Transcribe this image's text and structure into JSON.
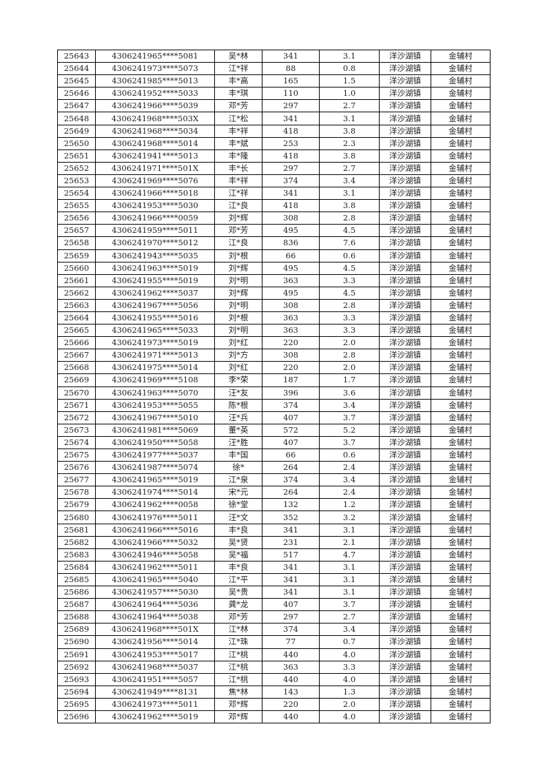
{
  "rows": [
    [
      "25643",
      "4306241965****5081",
      "吴*林",
      "341",
      "3.1",
      "洋沙湖镇",
      "金辅村"
    ],
    [
      "25644",
      "4306241973****5073",
      "江*祥",
      "88",
      "0.8",
      "洋沙湖镇",
      "金辅村"
    ],
    [
      "25645",
      "4306241985****5013",
      "丰*高",
      "165",
      "1.5",
      "洋沙湖镇",
      "金辅村"
    ],
    [
      "25646",
      "4306241952****5033",
      "丰*琪",
      "110",
      "1.0",
      "洋沙湖镇",
      "金辅村"
    ],
    [
      "25647",
      "4306241966****5039",
      "邓*芳",
      "297",
      "2.7",
      "洋沙湖镇",
      "金辅村"
    ],
    [
      "25648",
      "4306241968****503X",
      "江*松",
      "341",
      "3.1",
      "洋沙湖镇",
      "金辅村"
    ],
    [
      "25649",
      "4306241968****5034",
      "丰*祥",
      "418",
      "3.8",
      "洋沙湖镇",
      "金辅村"
    ],
    [
      "25650",
      "4306241968****5014",
      "丰*斌",
      "253",
      "2.3",
      "洋沙湖镇",
      "金辅村"
    ],
    [
      "25651",
      "4306241941****5013",
      "丰*隆",
      "418",
      "3.8",
      "洋沙湖镇",
      "金辅村"
    ],
    [
      "25652",
      "4306241971****501X",
      "丰*长",
      "297",
      "2.7",
      "洋沙湖镇",
      "金辅村"
    ],
    [
      "25653",
      "4306241969****5076",
      "丰*祥",
      "374",
      "3.4",
      "洋沙湖镇",
      "金辅村"
    ],
    [
      "25654",
      "4306241966****5018",
      "江*祥",
      "341",
      "3.1",
      "洋沙湖镇",
      "金辅村"
    ],
    [
      "25655",
      "4306241953****5030",
      "江*良",
      "418",
      "3.8",
      "洋沙湖镇",
      "金辅村"
    ],
    [
      "25656",
      "4306241966****0059",
      "刘*辉",
      "308",
      "2.8",
      "洋沙湖镇",
      "金辅村"
    ],
    [
      "25657",
      "4306241959****5011",
      "邓*芳",
      "495",
      "4.5",
      "洋沙湖镇",
      "金辅村"
    ],
    [
      "25658",
      "4306241970****5012",
      "江*良",
      "836",
      "7.6",
      "洋沙湖镇",
      "金辅村"
    ],
    [
      "25659",
      "4306241943****5035",
      "刘*根",
      "66",
      "0.6",
      "洋沙湖镇",
      "金辅村"
    ],
    [
      "25660",
      "4306241963****5019",
      "刘*辉",
      "495",
      "4.5",
      "洋沙湖镇",
      "金辅村"
    ],
    [
      "25661",
      "4306241955****5019",
      "刘*明",
      "363",
      "3.3",
      "洋沙湖镇",
      "金辅村"
    ],
    [
      "25662",
      "4306241962****5037",
      "刘*辉",
      "495",
      "4.5",
      "洋沙湖镇",
      "金辅村"
    ],
    [
      "25663",
      "4306241967****5056",
      "刘*明",
      "308",
      "2.8",
      "洋沙湖镇",
      "金辅村"
    ],
    [
      "25664",
      "4306241955****5016",
      "刘*根",
      "363",
      "3.3",
      "洋沙湖镇",
      "金辅村"
    ],
    [
      "25665",
      "4306241965****5033",
      "刘*明",
      "363",
      "3.3",
      "洋沙湖镇",
      "金辅村"
    ],
    [
      "25666",
      "4306241973****5019",
      "刘*红",
      "220",
      "2.0",
      "洋沙湖镇",
      "金辅村"
    ],
    [
      "25667",
      "4306241971****5013",
      "刘*方",
      "308",
      "2.8",
      "洋沙湖镇",
      "金辅村"
    ],
    [
      "25668",
      "4306241975****5014",
      "刘*红",
      "220",
      "2.0",
      "洋沙湖镇",
      "金辅村"
    ],
    [
      "25669",
      "4306241969****5108",
      "李*荣",
      "187",
      "1.7",
      "洋沙湖镇",
      "金辅村"
    ],
    [
      "25670",
      "4306241963****5070",
      "汪*友",
      "396",
      "3.6",
      "洋沙湖镇",
      "金辅村"
    ],
    [
      "25671",
      "4306241953****5055",
      "陈*根",
      "374",
      "3.4",
      "洋沙湖镇",
      "金辅村"
    ],
    [
      "25672",
      "4306241967****5010",
      "汪*兵",
      "407",
      "3.7",
      "洋沙湖镇",
      "金辅村"
    ],
    [
      "25673",
      "4306241981****5069",
      "董*英",
      "572",
      "5.2",
      "洋沙湖镇",
      "金辅村"
    ],
    [
      "25674",
      "4306241950****5058",
      "汪*胜",
      "407",
      "3.7",
      "洋沙湖镇",
      "金辅村"
    ],
    [
      "25675",
      "4306241977****5037",
      "丰*国",
      "66",
      "0.6",
      "洋沙湖镇",
      "金辅村"
    ],
    [
      "25676",
      "4306241987****5074",
      "徐*",
      "264",
      "2.4",
      "洋沙湖镇",
      "金辅村"
    ],
    [
      "25677",
      "4306241965****5019",
      "江*泉",
      "374",
      "3.4",
      "洋沙湖镇",
      "金辅村"
    ],
    [
      "25678",
      "4306241974****5014",
      "宋*元",
      "264",
      "2.4",
      "洋沙湖镇",
      "金辅村"
    ],
    [
      "25679",
      "4306241962****0058",
      "徐*堂",
      "132",
      "1.2",
      "洋沙湖镇",
      "金辅村"
    ],
    [
      "25680",
      "4306241976****5011",
      "汪*文",
      "352",
      "3.2",
      "洋沙湖镇",
      "金辅村"
    ],
    [
      "25681",
      "4306241966****5016",
      "丰*良",
      "341",
      "3.1",
      "洋沙湖镇",
      "金辅村"
    ],
    [
      "25682",
      "4306241966****5032",
      "吴*贤",
      "231",
      "2.1",
      "洋沙湖镇",
      "金辅村"
    ],
    [
      "25683",
      "4306241946****5058",
      "吴*福",
      "517",
      "4.7",
      "洋沙湖镇",
      "金辅村"
    ],
    [
      "25684",
      "4306241962****5011",
      "丰*良",
      "341",
      "3.1",
      "洋沙湖镇",
      "金辅村"
    ],
    [
      "25685",
      "4306241965****5040",
      "江*平",
      "341",
      "3.1",
      "洋沙湖镇",
      "金辅村"
    ],
    [
      "25686",
      "4306241957****5030",
      "吴*贵",
      "341",
      "3.1",
      "洋沙湖镇",
      "金辅村"
    ],
    [
      "25687",
      "4306241964****5036",
      "龚*龙",
      "407",
      "3.7",
      "洋沙湖镇",
      "金辅村"
    ],
    [
      "25688",
      "4306241964****5038",
      "邓*芳",
      "297",
      "2.7",
      "洋沙湖镇",
      "金辅村"
    ],
    [
      "25689",
      "4306241968****501X",
      "江*林",
      "374",
      "3.4",
      "洋沙湖镇",
      "金辅村"
    ],
    [
      "25690",
      "4306241956****5014",
      "江*珠",
      "77",
      "0.7",
      "洋沙湖镇",
      "金辅村"
    ],
    [
      "25691",
      "4306241953****5017",
      "江*桃",
      "440",
      "4.0",
      "洋沙湖镇",
      "金辅村"
    ],
    [
      "25692",
      "4306241968****5037",
      "江*桃",
      "363",
      "3.3",
      "洋沙湖镇",
      "金辅村"
    ],
    [
      "25693",
      "4306241951****5057",
      "江*桃",
      "440",
      "4.0",
      "洋沙湖镇",
      "金辅村"
    ],
    [
      "25694",
      "4306241949****8131",
      "焦*林",
      "143",
      "1.3",
      "洋沙湖镇",
      "金辅村"
    ],
    [
      "25695",
      "4306241973****5011",
      "邓*辉",
      "220",
      "2.0",
      "洋沙湖镇",
      "金辅村"
    ],
    [
      "25696",
      "4306241962****5019",
      "邓*辉",
      "440",
      "4.0",
      "洋沙湖镇",
      "金辅村"
    ]
  ]
}
